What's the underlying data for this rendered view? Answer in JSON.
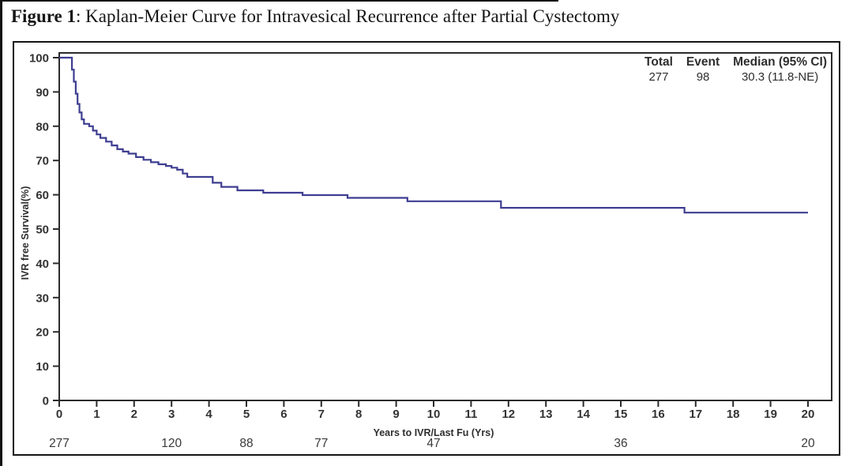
{
  "page": {
    "caption_bold": "Figure 1",
    "caption_rest": ": Kaplan-Meier Curve for Intravesical Recurrence after Partial Cystectomy"
  },
  "chart_data": {
    "type": "line",
    "subtype": "kaplan-meier-step-curve",
    "title": "Kaplan-Meier Curve for Intravesical Recurrence after Partial Cystectomy",
    "xlabel": "Years to IVR/Last Fu (Yrs)",
    "ylabel": "IVR free Survival(%)",
    "xlim": [
      0,
      20
    ],
    "ylim": [
      0,
      100
    ],
    "x_ticks": [
      0,
      1,
      2,
      3,
      4,
      5,
      6,
      7,
      8,
      9,
      10,
      11,
      12,
      13,
      14,
      15,
      16,
      17,
      18,
      19,
      20
    ],
    "y_ticks": [
      0,
      10,
      20,
      30,
      40,
      50,
      60,
      70,
      80,
      90,
      100
    ],
    "grid": false,
    "axis_color": "#2b2b2b",
    "legend": {
      "position": "top-right",
      "headers": [
        "Total",
        "Event",
        "Median (95% CI)"
      ],
      "values": [
        "277",
        "98",
        "30.3 (11.8-NE)"
      ]
    },
    "series": [
      {
        "name": "IVR free survival",
        "color": "#3e3e92",
        "steps": [
          [
            0,
            100
          ],
          [
            0.3,
            100
          ],
          [
            0.34,
            96.5
          ],
          [
            0.39,
            93
          ],
          [
            0.44,
            89.5
          ],
          [
            0.49,
            86.5
          ],
          [
            0.54,
            84
          ],
          [
            0.6,
            82
          ],
          [
            0.66,
            80.7
          ],
          [
            0.8,
            80
          ],
          [
            0.9,
            78.7
          ],
          [
            1.0,
            77.6
          ],
          [
            1.1,
            76.6
          ],
          [
            1.25,
            75.5
          ],
          [
            1.4,
            74.4
          ],
          [
            1.55,
            73.3
          ],
          [
            1.7,
            72.6
          ],
          [
            1.85,
            72.0
          ],
          [
            2.05,
            71.0
          ],
          [
            2.25,
            70.2
          ],
          [
            2.45,
            69.5
          ],
          [
            2.65,
            68.9
          ],
          [
            2.85,
            68.4
          ],
          [
            3.0,
            67.9
          ],
          [
            3.15,
            67.3
          ],
          [
            3.3,
            66.2
          ],
          [
            3.42,
            65.2
          ],
          [
            4.1,
            63.5
          ],
          [
            4.33,
            62.3
          ],
          [
            4.76,
            61.3
          ],
          [
            5.45,
            60.6
          ],
          [
            6.5,
            59.9
          ],
          [
            7.7,
            59.1
          ],
          [
            9.3,
            58.1
          ],
          [
            11.8,
            56.2
          ],
          [
            16.7,
            54.8
          ],
          [
            20.0,
            54.8
          ]
        ]
      }
    ],
    "at_risk": {
      "x": [
        0,
        3,
        5,
        7,
        10,
        15,
        20
      ],
      "counts": [
        277,
        120,
        88,
        77,
        47,
        36,
        20
      ]
    }
  }
}
